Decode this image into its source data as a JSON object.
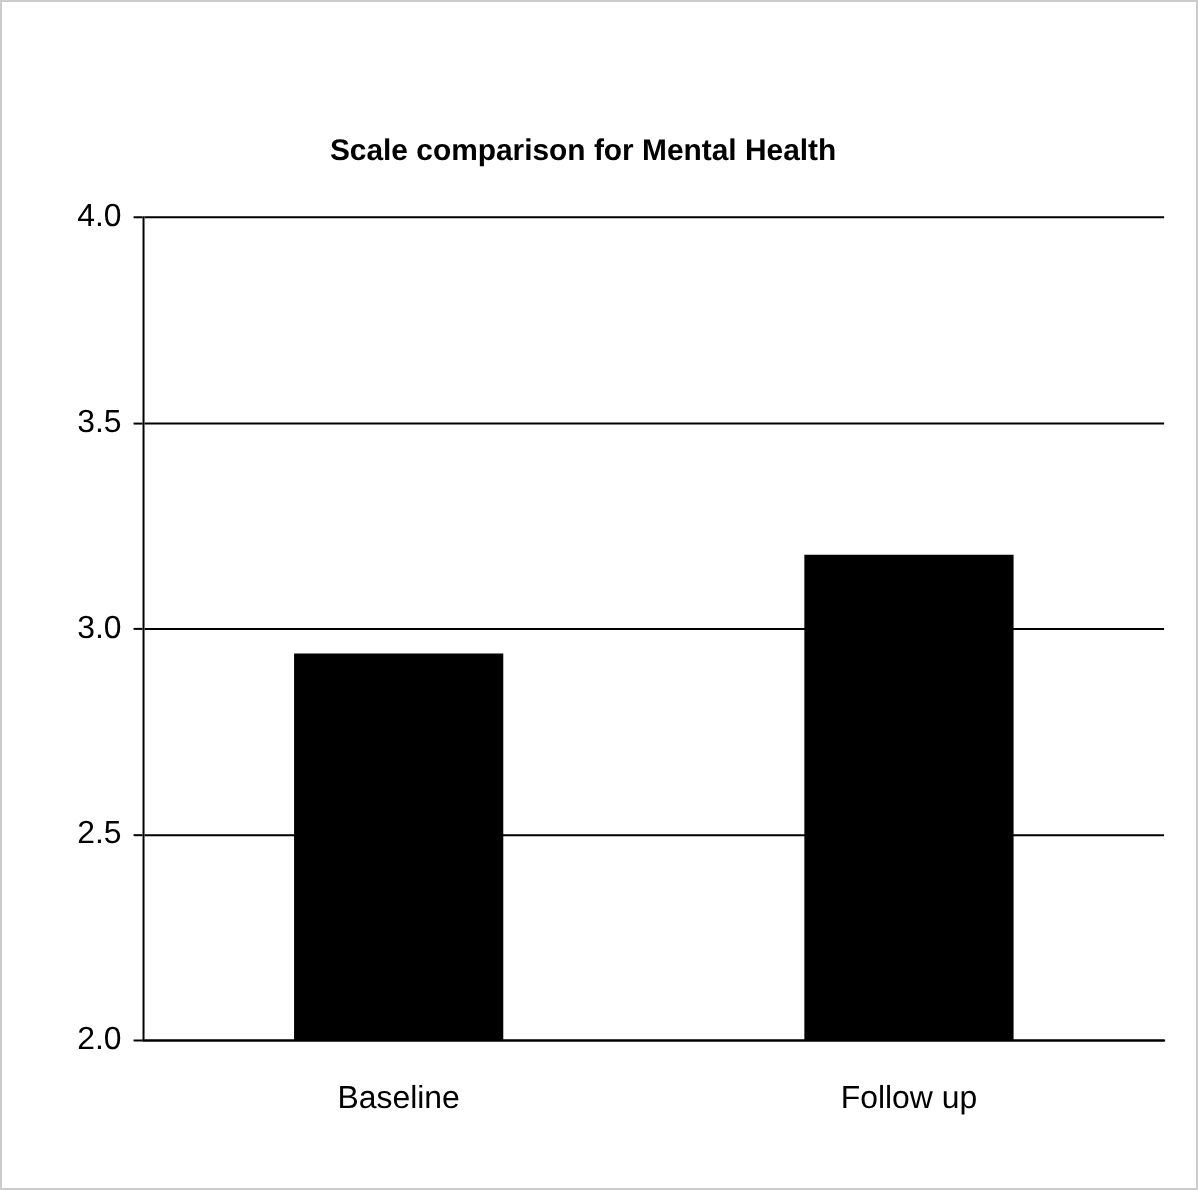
{
  "chart_data": {
    "type": "bar",
    "title": "Scale comparison for Mental Health",
    "categories": [
      "Baseline",
      "Follow up"
    ],
    "values": [
      2.94,
      3.18
    ],
    "color": "#000000",
    "ylim": [
      2,
      4
    ],
    "yticks": [
      {
        "value": 2,
        "label": "2.0"
      },
      {
        "value": 2.5,
        "label": "2.5"
      },
      {
        "value": 3,
        "label": "3.0"
      },
      {
        "value": 3.5,
        "label": "3.5"
      },
      {
        "value": 4,
        "label": "4.0"
      }
    ],
    "grid": "y"
  }
}
